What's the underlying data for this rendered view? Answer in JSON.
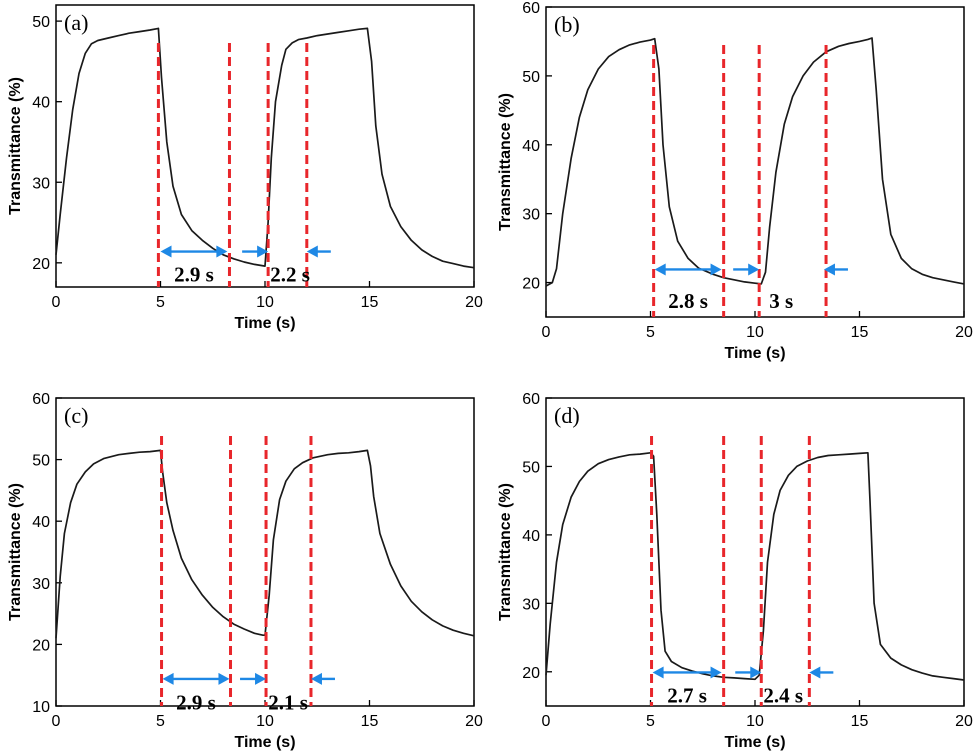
{
  "colors": {
    "curve": "#1a1a1a",
    "marker_line": "#e8262b",
    "arrow": "#1e88e5",
    "axis": "#000000"
  },
  "chart_data": [
    {
      "type": "line",
      "panel_label": "(a)",
      "xlabel": "Time (s)",
      "ylabel": "Transmittance (%)",
      "xlim": [
        0,
        20
      ],
      "ylim": [
        17,
        52
      ],
      "xticks": [
        0,
        5,
        10,
        15,
        20
      ],
      "yticks": [
        20,
        30,
        40,
        50
      ],
      "series": [
        {
          "x": [
            0,
            0.2,
            0.5,
            0.8,
            1.1,
            1.4,
            1.7,
            2,
            2.5,
            3,
            3.5,
            4,
            4.5,
            4.9,
            5.05,
            5.3,
            5.6,
            6,
            6.5,
            7,
            7.5,
            8,
            8.5,
            9,
            9.5,
            10,
            10.15,
            10.3,
            10.5,
            10.8,
            11,
            11.3,
            11.6,
            12,
            12.5,
            13,
            13.5,
            14,
            14.5,
            14.9,
            15.1,
            15.3,
            15.6,
            16,
            16.5,
            17,
            17.5,
            18,
            18.5,
            19,
            19.5,
            20
          ],
          "y": [
            21,
            26,
            33,
            39,
            43.5,
            46,
            47.2,
            47.6,
            47.9,
            48.2,
            48.5,
            48.7,
            48.9,
            49.1,
            43,
            35,
            29.5,
            26,
            24,
            22.8,
            21.8,
            21,
            20.5,
            20.1,
            19.8,
            19.6,
            25,
            33,
            40,
            44.5,
            46.5,
            47.3,
            47.7,
            47.9,
            48.2,
            48.4,
            48.6,
            48.8,
            49,
            49.1,
            45,
            37,
            31,
            27,
            24.5,
            22.8,
            21.6,
            20.8,
            20.2,
            19.9,
            19.6,
            19.4
          ]
        }
      ],
      "markers_x": [
        4.9,
        8.3,
        10.15,
        12
      ],
      "intervals": [
        {
          "label": "2.9 s",
          "start": 5.0,
          "end": 8.2,
          "arrow_y": 21.4,
          "label_y": 18.4
        },
        {
          "label": "2.2 s",
          "start": 10.15,
          "end": 12.0,
          "arrow_y": 21.4,
          "label_y": 18.4
        }
      ]
    },
    {
      "type": "line",
      "panel_label": "(b)",
      "xlabel": "Time (s)",
      "ylabel": "Transmittance (%)",
      "xlim": [
        0,
        20
      ],
      "ylim": [
        15,
        60
      ],
      "xticks": [
        0,
        5,
        10,
        15,
        20
      ],
      "yticks": [
        20,
        30,
        40,
        50,
        60
      ],
      "series": [
        {
          "x": [
            0,
            0.3,
            0.5,
            0.8,
            1.2,
            1.6,
            2,
            2.5,
            3,
            3.5,
            4,
            4.5,
            5,
            5.2,
            5.4,
            5.6,
            5.9,
            6.3,
            6.8,
            7.3,
            8,
            8.5,
            9,
            9.5,
            10,
            10.3,
            10.5,
            10.7,
            11,
            11.4,
            11.8,
            12.3,
            12.8,
            13.4,
            14,
            14.5,
            15,
            15.4,
            15.6,
            15.8,
            16.1,
            16.5,
            17,
            17.5,
            18,
            18.5,
            19,
            19.5,
            20
          ],
          "y": [
            19.5,
            20,
            22,
            30,
            38,
            44,
            48,
            51,
            52.8,
            53.8,
            54.5,
            54.9,
            55.2,
            55.4,
            51,
            40,
            31,
            26,
            23.5,
            22.1,
            21.2,
            20.7,
            20.4,
            20.1,
            19.9,
            19.8,
            21.5,
            28,
            36,
            43,
            47,
            50,
            52,
            53.5,
            54.3,
            54.7,
            55,
            55.3,
            55.5,
            48,
            35,
            27,
            23.5,
            22,
            21.2,
            20.7,
            20.4,
            20.1,
            19.8
          ]
        }
      ],
      "markers_x": [
        5.15,
        8.5,
        10.2,
        13.4
      ],
      "intervals": [
        {
          "label": "2.8 s",
          "start": 5.2,
          "end": 8.4,
          "arrow_y": 21.9,
          "label_y": 17.2
        },
        {
          "label": "3 s",
          "start": 10.2,
          "end": 13.3,
          "arrow_y": 21.9,
          "label_y": 17.2
        }
      ]
    },
    {
      "type": "line",
      "panel_label": "(c)",
      "xlabel": "Time (s)",
      "ylabel": "Transmittance (%)",
      "xlim": [
        0,
        20
      ],
      "ylim": [
        10,
        60
      ],
      "xticks": [
        0,
        5,
        10,
        15,
        20
      ],
      "yticks": [
        10,
        20,
        30,
        40,
        50,
        60
      ],
      "series": [
        {
          "x": [
            0,
            0.2,
            0.4,
            0.7,
            1,
            1.4,
            1.8,
            2.3,
            3,
            3.5,
            4,
            4.5,
            5,
            5.1,
            5.3,
            5.6,
            6,
            6.5,
            7,
            7.5,
            8,
            8.5,
            9,
            9.5,
            9.9,
            10,
            10.2,
            10.4,
            10.7,
            11,
            11.4,
            11.8,
            12.3,
            13,
            13.5,
            14,
            14.5,
            14.9,
            15.05,
            15.2,
            15.5,
            16,
            16.5,
            17,
            17.5,
            18,
            18.5,
            19,
            19.5,
            20
          ],
          "y": [
            21,
            31,
            38,
            43,
            46,
            48,
            49.3,
            50.2,
            50.8,
            51,
            51.2,
            51.3,
            51.5,
            48,
            43,
            38.5,
            34,
            30.5,
            28,
            26,
            24.5,
            23.3,
            22.5,
            21.8,
            21.5,
            21.5,
            28,
            37,
            43.5,
            46.5,
            48.5,
            49.5,
            50.3,
            50.8,
            51,
            51.1,
            51.3,
            51.5,
            49,
            44,
            38,
            33,
            29.5,
            27,
            25.3,
            24,
            23,
            22.3,
            21.8,
            21.4
          ]
        }
      ],
      "markers_x": [
        5.05,
        8.35,
        10.05,
        12.2
      ],
      "intervals": [
        {
          "label": "2.9 s",
          "start": 5.1,
          "end": 8.3,
          "arrow_y": 14.4,
          "label_y": 10.4
        },
        {
          "label": "2.1 s",
          "start": 10.05,
          "end": 12.2,
          "arrow_y": 14.4,
          "label_y": 10.4
        }
      ]
    },
    {
      "type": "line",
      "panel_label": "(d)",
      "xlabel": "Time (s)",
      "ylabel": "Transmittance (%)",
      "xlim": [
        0,
        20
      ],
      "ylim": [
        15,
        60
      ],
      "xticks": [
        0,
        5,
        10,
        15,
        20
      ],
      "yticks": [
        20,
        30,
        40,
        50,
        60
      ],
      "series": [
        {
          "x": [
            0,
            0.2,
            0.5,
            0.8,
            1.2,
            1.6,
            2,
            2.5,
            3,
            3.5,
            4,
            4.5,
            5,
            5.15,
            5.3,
            5.5,
            5.7,
            6,
            6.5,
            7,
            7.5,
            8,
            8.5,
            9,
            9.5,
            10,
            10.2,
            10.4,
            10.6,
            10.9,
            11.2,
            11.6,
            12,
            12.5,
            13,
            13.5,
            14,
            14.5,
            15,
            15.4,
            15.5,
            15.7,
            16,
            16.5,
            17,
            17.5,
            18,
            18.5,
            19,
            19.5,
            20
          ],
          "y": [
            19.5,
            27,
            36,
            41.5,
            45.5,
            47.8,
            49.3,
            50.4,
            51,
            51.4,
            51.7,
            51.8,
            52,
            51.5,
            43,
            29,
            23,
            21.5,
            20.6,
            20.1,
            19.7,
            19.4,
            19.2,
            19.1,
            19,
            18.9,
            19.5,
            26,
            36,
            43,
            46.5,
            48.7,
            50,
            50.8,
            51.3,
            51.6,
            51.7,
            51.8,
            51.9,
            52,
            45,
            30,
            24,
            22,
            21,
            20.3,
            19.8,
            19.4,
            19.2,
            19,
            18.8
          ]
        }
      ],
      "markers_x": [
        5.05,
        8.5,
        10.3,
        12.6
      ],
      "intervals": [
        {
          "label": "2.7 s",
          "start": 5.1,
          "end": 8.4,
          "arrow_y": 19.9,
          "label_y": 16.4
        },
        {
          "label": "2.4 s",
          "start": 10.3,
          "end": 12.6,
          "arrow_y": 19.9,
          "label_y": 16.4
        }
      ]
    }
  ]
}
